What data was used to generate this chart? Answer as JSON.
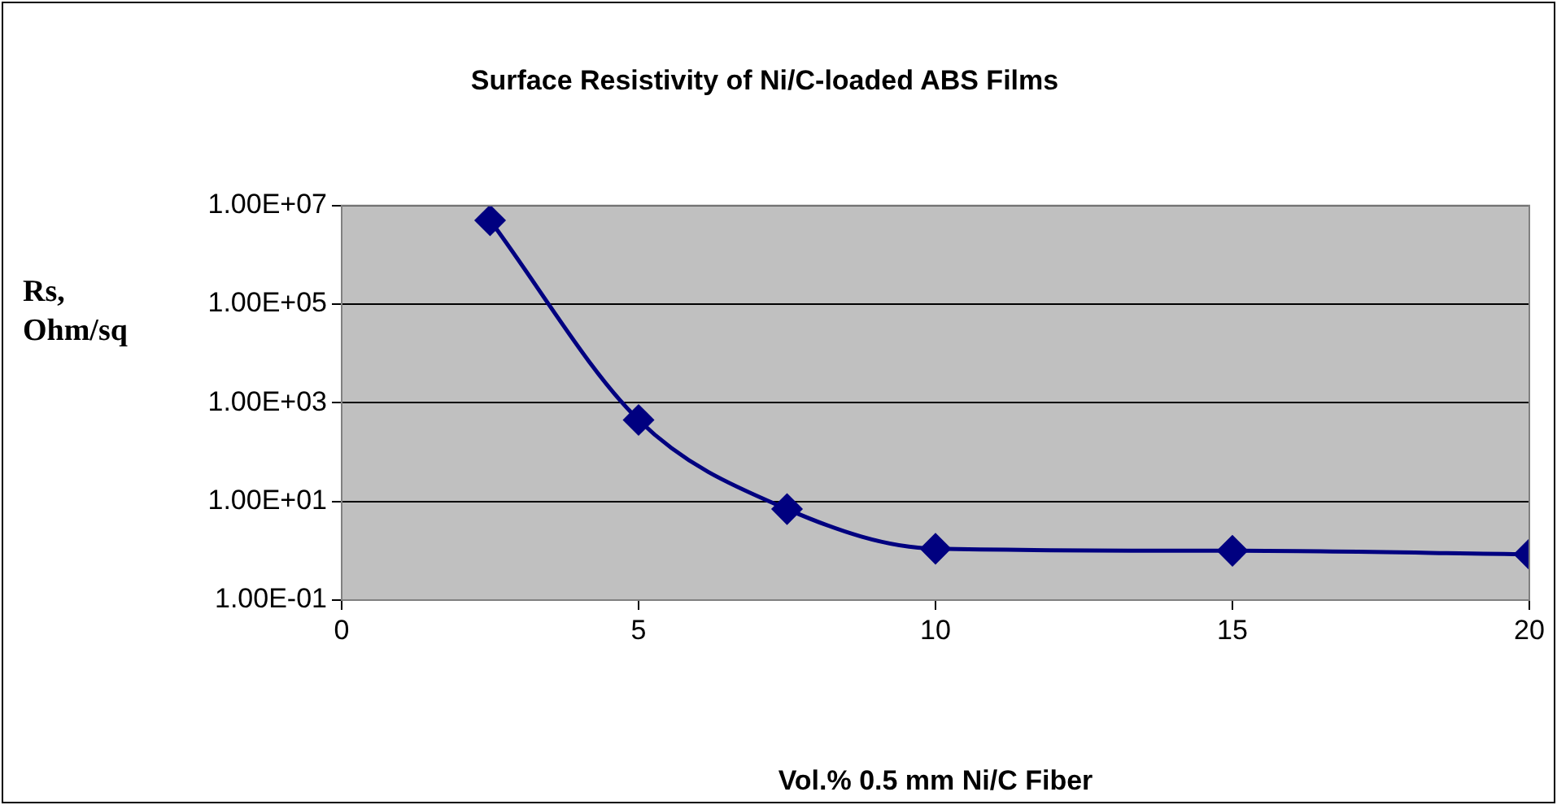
{
  "chart_data": {
    "type": "line",
    "title": "Surface Resistivity of Ni/C-loaded ABS Films",
    "xlabel": "Vol.% 0.5 mm Ni/C Fiber",
    "ylabel": "Rs, Ohm/sq",
    "x": [
      2.5,
      5,
      7.5,
      10,
      15,
      20
    ],
    "series": [
      {
        "color": "#000080",
        "values": [
          5000000,
          450,
          7,
          1.1,
          1,
          0.85
        ]
      }
    ],
    "xlim": [
      0,
      20
    ],
    "xticks": [
      0,
      5,
      10,
      15,
      20
    ],
    "ylim": [
      0.1,
      10000000
    ],
    "yticks": [
      {
        "value": 0.1,
        "label": "1.00E-01"
      },
      {
        "value": 10,
        "label": "1.00E+01"
      },
      {
        "value": 1000,
        "label": "1.00E+03"
      },
      {
        "value": 100000,
        "label": "1.00E+05"
      },
      {
        "value": 10000000,
        "label": "1.00E+07"
      }
    ],
    "log": "y",
    "grid": "y",
    "legend": false,
    "marker": "diamond",
    "line_style": "solid"
  }
}
